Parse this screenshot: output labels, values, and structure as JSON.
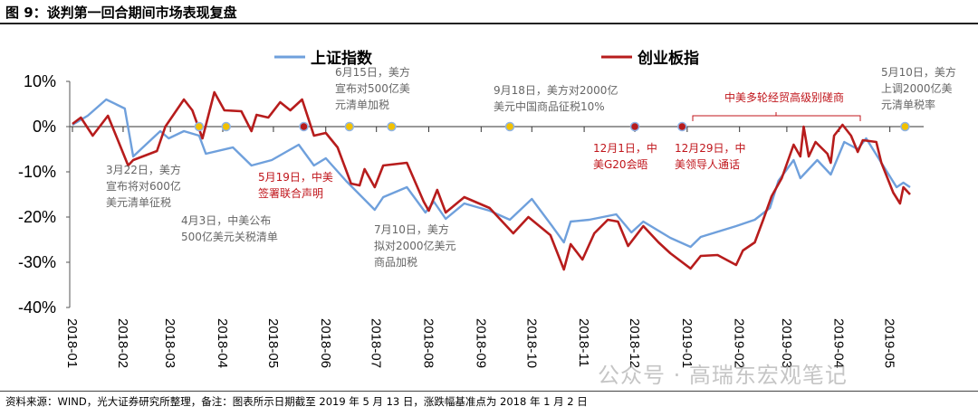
{
  "title": "图 9：谈判第一回合期间市场表现复盘",
  "source": "资料来源：WIND，光大证券研究所整理，备注：图表所示日期截至 2019 年 5 月 13 日，涨跌幅基准点为 2018 年 1 月 2 日",
  "watermark": "公众号 · 高瑞东宏观笔记",
  "colors": {
    "sse": "#6fa0dc",
    "cyb": "#b71c1c",
    "event_yellow": "#f2c100",
    "event_red": "#b71c1c",
    "ann_gray": "#666666",
    "ann_red": "#c0151b"
  },
  "chart_data": {
    "type": "line",
    "title": "",
    "xlabel": "",
    "ylabel": "",
    "ylim": [
      -40,
      10
    ],
    "yticks": [
      "10%",
      "0%",
      "-10%",
      "-20%",
      "-30%",
      "-40%"
    ],
    "ytick_values": [
      10,
      0,
      -10,
      -20,
      -30,
      -40
    ],
    "xticks": [
      "2018-01",
      "2018-02",
      "2018-03",
      "2018-04",
      "2018-05",
      "2018-06",
      "2018-07",
      "2018-08",
      "2018-09",
      "2018-10",
      "2018-11",
      "2018-12",
      "2019-01",
      "2019-02",
      "2019-03",
      "2019-04",
      "2019-05"
    ],
    "xlim": [
      "2018-01-02",
      "2019-05-13"
    ],
    "grid": false,
    "legend_placement": "top",
    "series": [
      {
        "name": "上证指数",
        "color": "#6fa0dc",
        "points": [
          [
            "2018-01-02",
            0.4
          ],
          [
            "2018-01-11",
            2.4
          ],
          [
            "2018-01-22",
            6
          ],
          [
            "2018-02-02",
            4
          ],
          [
            "2018-02-07",
            -6.6
          ],
          [
            "2018-02-23",
            -1
          ],
          [
            "2018-02-28",
            -2.6
          ],
          [
            "2018-03-09",
            -1
          ],
          [
            "2018-03-18",
            -2
          ],
          [
            "2018-03-22",
            -6
          ],
          [
            "2018-04-07",
            -4.6
          ],
          [
            "2018-04-18",
            -8.6
          ],
          [
            "2018-04-30",
            -7.4
          ],
          [
            "2018-05-16",
            -4
          ],
          [
            "2018-05-25",
            -8.6
          ],
          [
            "2018-06-01",
            -7
          ],
          [
            "2018-06-13",
            -12
          ],
          [
            "2018-06-30",
            -18.4
          ],
          [
            "2018-07-05",
            -15.6
          ],
          [
            "2018-07-19",
            -13.4
          ],
          [
            "2018-07-30",
            -19
          ],
          [
            "2018-08-04",
            -16.6
          ],
          [
            "2018-08-11",
            -20.4
          ],
          [
            "2018-08-22",
            -17
          ],
          [
            "2018-09-06",
            -18.6
          ],
          [
            "2018-09-18",
            -20.6
          ],
          [
            "2018-10-01",
            -16
          ],
          [
            "2018-10-13",
            -22
          ],
          [
            "2018-10-20",
            -25.6
          ],
          [
            "2018-10-24",
            -21
          ],
          [
            "2018-11-04",
            -20.6
          ],
          [
            "2018-11-20",
            -19.4
          ],
          [
            "2018-11-29",
            -23.4
          ],
          [
            "2018-12-06",
            -21
          ],
          [
            "2018-12-22",
            -24.6
          ],
          [
            "2019-01-03",
            -26.6
          ],
          [
            "2019-01-09",
            -24.4
          ],
          [
            "2019-01-30",
            -22
          ],
          [
            "2019-02-10",
            -20.6
          ],
          [
            "2019-02-19",
            -18
          ],
          [
            "2019-02-24",
            -12
          ],
          [
            "2019-03-05",
            -7.4
          ],
          [
            "2019-03-09",
            -11.4
          ],
          [
            "2019-03-19",
            -7.4
          ],
          [
            "2019-03-27",
            -10.6
          ],
          [
            "2019-04-04",
            -3.4
          ],
          [
            "2019-04-12",
            -5
          ],
          [
            "2019-04-17",
            -2.6
          ],
          [
            "2019-04-26",
            -8
          ],
          [
            "2019-05-05",
            -13.4
          ],
          [
            "2019-05-09",
            -12.4
          ],
          [
            "2019-05-13",
            -13.4
          ]
        ]
      },
      {
        "name": "创业板指",
        "color": "#b71c1c",
        "points": [
          [
            "2018-01-02",
            0.6
          ],
          [
            "2018-01-07",
            2
          ],
          [
            "2018-01-14",
            -2
          ],
          [
            "2018-01-23",
            2.4
          ],
          [
            "2018-01-30",
            -4
          ],
          [
            "2018-02-04",
            -8.6
          ],
          [
            "2018-02-07",
            -7.4
          ],
          [
            "2018-02-21",
            -5.4
          ],
          [
            "2018-02-26",
            0
          ],
          [
            "2018-03-09",
            6
          ],
          [
            "2018-03-14",
            3.6
          ],
          [
            "2018-03-20",
            -2.6
          ],
          [
            "2018-03-27",
            7.6
          ],
          [
            "2018-04-02",
            3.6
          ],
          [
            "2018-04-12",
            3.4
          ],
          [
            "2018-04-18",
            -1
          ],
          [
            "2018-04-21",
            2.6
          ],
          [
            "2018-04-28",
            2
          ],
          [
            "2018-05-05",
            5.4
          ],
          [
            "2018-05-11",
            3.6
          ],
          [
            "2018-05-18",
            6
          ],
          [
            "2018-05-25",
            -2
          ],
          [
            "2018-06-01",
            -1.4
          ],
          [
            "2018-06-08",
            -4.6
          ],
          [
            "2018-06-16",
            -12.6
          ],
          [
            "2018-06-21",
            -13
          ],
          [
            "2018-06-24",
            -9.4
          ],
          [
            "2018-06-30",
            -13.4
          ],
          [
            "2018-07-05",
            -8.6
          ],
          [
            "2018-07-19",
            -8
          ],
          [
            "2018-07-29",
            -16.6
          ],
          [
            "2018-08-01",
            -18.6
          ],
          [
            "2018-08-06",
            -14
          ],
          [
            "2018-08-11",
            -19
          ],
          [
            "2018-08-22",
            -15.6
          ],
          [
            "2018-09-06",
            -18
          ],
          [
            "2018-09-20",
            -23.6
          ],
          [
            "2018-09-29",
            -20
          ],
          [
            "2018-10-12",
            -24
          ],
          [
            "2018-10-20",
            -31.6
          ],
          [
            "2018-10-24",
            -26
          ],
          [
            "2018-10-31",
            -29.4
          ],
          [
            "2018-11-07",
            -23.6
          ],
          [
            "2018-11-15",
            -20.6
          ],
          [
            "2018-11-21",
            -21
          ],
          [
            "2018-11-27",
            -26.4
          ],
          [
            "2018-12-06",
            -22
          ],
          [
            "2018-12-15",
            -25.6
          ],
          [
            "2018-12-22",
            -28
          ],
          [
            "2019-01-03",
            -31.4
          ],
          [
            "2019-01-09",
            -28.6
          ],
          [
            "2019-01-19",
            -28.4
          ],
          [
            "2019-01-30",
            -30.6
          ],
          [
            "2019-02-03",
            -27.4
          ],
          [
            "2019-02-10",
            -25.6
          ],
          [
            "2019-02-15",
            -20.6
          ],
          [
            "2019-02-20",
            -15.4
          ],
          [
            "2019-02-26",
            -11.4
          ],
          [
            "2019-03-05",
            -4
          ],
          [
            "2019-03-09",
            -6.6
          ],
          [
            "2019-03-11",
            0
          ],
          [
            "2019-03-14",
            -6.6
          ],
          [
            "2019-03-18",
            -3.4
          ],
          [
            "2019-03-25",
            -6
          ],
          [
            "2019-03-27",
            -8
          ],
          [
            "2019-03-29",
            -2
          ],
          [
            "2019-04-03",
            0.4
          ],
          [
            "2019-04-08",
            -2
          ],
          [
            "2019-04-12",
            -5.6
          ],
          [
            "2019-04-15",
            -3
          ],
          [
            "2019-04-23",
            -3.4
          ],
          [
            "2019-04-26",
            -8
          ],
          [
            "2019-05-03",
            -14.6
          ],
          [
            "2019-05-07",
            -17
          ],
          [
            "2019-05-09",
            -13.4
          ],
          [
            "2019-05-13",
            -15
          ]
        ]
      }
    ],
    "events": [
      {
        "date": "2018-03-18",
        "kind": "yellow",
        "lines": [
          "3月22日，美方",
          "宣布将对600亿",
          "美元清单征税"
        ]
      },
      {
        "date": "2018-04-03",
        "kind": "yellow",
        "lines": [
          "4月3日，中美公布",
          "500亿美元关税清单"
        ]
      },
      {
        "date": "2018-05-19",
        "kind": "red",
        "lines": [
          "5月19日，中美",
          "签署联合声明"
        ]
      },
      {
        "date": "2018-06-15",
        "kind": "yellow",
        "lines": [
          "6月15日，美方",
          "宣布对500亿美",
          "元清单加税"
        ]
      },
      {
        "date": "2018-07-10",
        "kind": "yellow",
        "lines": [
          "7月10日，美方",
          "拟对2000亿美元",
          "商品加税"
        ]
      },
      {
        "date": "2018-09-18",
        "kind": "yellow",
        "lines": [
          "9月18日，美方对2000亿",
          "美元中国商品征税10%"
        ]
      },
      {
        "date": "2018-12-01",
        "kind": "red",
        "lines": [
          "12月1日，中",
          "美G20会晤"
        ]
      },
      {
        "date": "2018-12-29",
        "kind": "red",
        "lines": [
          "12月29日，中",
          "美领导人通话"
        ]
      },
      {
        "date": "2019-05-10",
        "kind": "yellow",
        "lines": [
          "5月10日，美方",
          "上调2000亿美",
          "元清单税率"
        ]
      }
    ],
    "bracket_label": "中美多轮经贸高级别磋商"
  }
}
